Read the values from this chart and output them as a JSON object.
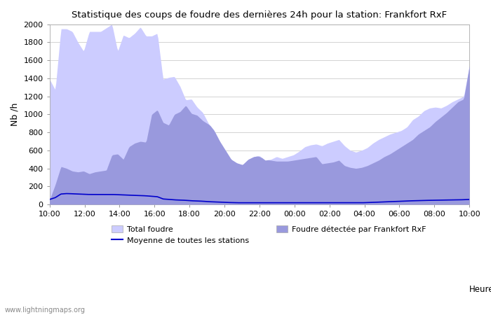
{
  "title": "Statistique des coups de foudre des dernières 24h pour la station: Frankfort RxF",
  "ylabel": "Nb /h",
  "watermark": "www.lightningmaps.org",
  "xlim_labels": [
    "10:00",
    "12:00",
    "14:00",
    "16:00",
    "18:00",
    "20:00",
    "22:00",
    "00:00",
    "02:00",
    "04:00",
    "06:00",
    "08:00",
    "10:00"
  ],
  "ylim": [
    0,
    2000
  ],
  "yticks": [
    0,
    200,
    400,
    600,
    800,
    1000,
    1200,
    1400,
    1600,
    1800,
    2000
  ],
  "color_total": "#ccccff",
  "color_detected": "#9999dd",
  "color_mean": "#0000cc",
  "legend_total": "Total foudre",
  "legend_detected": "Foudre détectée par Frankfort RxF",
  "legend_mean": "Moyenne de toutes les stations",
  "xlabel_right": "Heure",
  "total_foudre": [
    1390,
    1270,
    1950,
    1950,
    1920,
    1800,
    1700,
    1920,
    1920,
    1920,
    1960,
    2000,
    1700,
    1880,
    1850,
    1900,
    1970,
    1870,
    1870,
    1900,
    1390,
    1410,
    1420,
    1310,
    1160,
    1170,
    1080,
    1020,
    900,
    820,
    700,
    600,
    500,
    460,
    440,
    500,
    530,
    540,
    490,
    500,
    530,
    510,
    530,
    550,
    590,
    640,
    660,
    670,
    650,
    680,
    700,
    720,
    650,
    600,
    580,
    600,
    630,
    680,
    720,
    750,
    780,
    800,
    820,
    860,
    940,
    980,
    1040,
    1070,
    1080,
    1070,
    1100,
    1140,
    1170,
    1200,
    1540
  ],
  "foudre_detected": [
    50,
    220,
    420,
    400,
    370,
    360,
    370,
    340,
    360,
    370,
    380,
    550,
    560,
    500,
    640,
    680,
    700,
    690,
    1000,
    1050,
    910,
    880,
    1000,
    1030,
    1100,
    1010,
    990,
    930,
    890,
    840,
    790,
    730,
    670,
    630,
    600,
    570,
    550,
    530,
    500,
    490,
    480,
    480,
    480,
    490,
    500,
    510,
    520,
    530,
    450,
    460,
    470,
    490,
    430,
    410,
    400,
    410,
    430,
    460,
    490,
    530,
    560,
    600,
    640,
    680,
    720,
    780,
    820,
    860,
    920,
    970,
    1020,
    1080,
    1140,
    1170,
    1540
  ],
  "mean_vals": [
    55,
    75,
    115,
    120,
    118,
    115,
    112,
    110,
    110,
    110,
    110,
    110,
    108,
    105,
    102,
    100,
    98,
    95,
    90,
    85,
    60,
    55,
    50,
    48,
    45,
    40,
    38,
    35,
    30,
    28,
    25,
    22,
    20,
    18,
    18,
    18,
    18,
    18,
    18,
    18,
    18,
    18,
    18,
    18,
    18,
    18,
    18,
    18,
    18,
    18,
    18,
    18,
    18,
    18,
    18,
    18,
    20,
    22,
    25,
    28,
    30,
    32,
    35,
    38,
    40,
    42,
    44,
    45,
    46,
    47,
    48,
    49,
    50,
    52,
    55
  ]
}
